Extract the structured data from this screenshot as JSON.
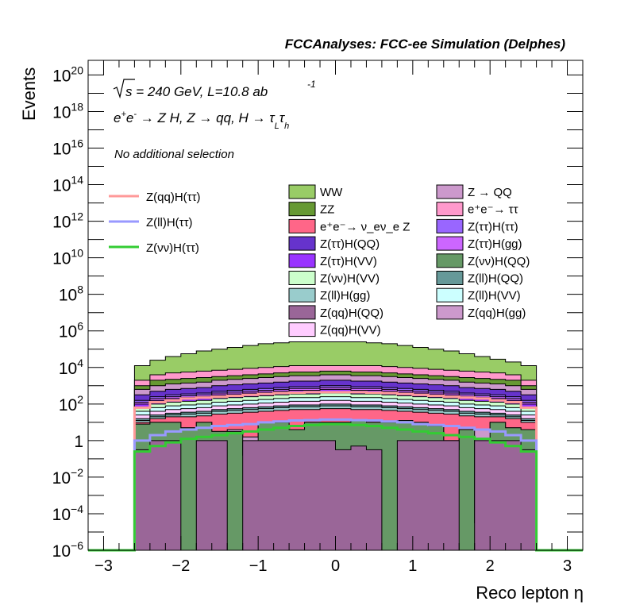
{
  "chart_data": {
    "type": "area",
    "header": "FCCAnalyses: FCC-ee Simulation (Delphes)",
    "xlabel": "Reco lepton η",
    "ylabel": "Events",
    "xlim": [
      -3.2,
      3.2
    ],
    "ylim_log10": [
      -6,
      20.8
    ],
    "yscale": "log",
    "x_ticks": [
      "−3",
      "−2",
      "−1",
      "0",
      "1",
      "2",
      "3"
    ],
    "x_tick_values": [
      -3,
      -2,
      -1,
      0,
      1,
      2,
      3
    ],
    "y_ticks": [
      {
        "exp": -6,
        "base": "10",
        "sup": "−6"
      },
      {
        "exp": -4,
        "base": "10",
        "sup": "−4"
      },
      {
        "exp": -2,
        "base": "10",
        "sup": "−2"
      },
      {
        "exp": 0,
        "base": "1",
        "sup": ""
      },
      {
        "exp": 2,
        "base": "10",
        "sup": "2"
      },
      {
        "exp": 4,
        "base": "10",
        "sup": "4"
      },
      {
        "exp": 6,
        "base": "10",
        "sup": "6"
      },
      {
        "exp": 8,
        "base": "10",
        "sup": "8"
      },
      {
        "exp": 10,
        "base": "10",
        "sup": "10"
      },
      {
        "exp": 12,
        "base": "10",
        "sup": "12"
      },
      {
        "exp": 14,
        "base": "10",
        "sup": "14"
      },
      {
        "exp": 16,
        "base": "10",
        "sup": "16"
      },
      {
        "exp": 18,
        "base": "10",
        "sup": "18"
      },
      {
        "exp": 20,
        "base": "10",
        "sup": "20"
      }
    ],
    "annotations": {
      "energy": "√s = 240 GeV, L=10.8 ab",
      "energy_sup": "-1",
      "process": "e⁺e⁻ → Z H, Z → qq, H → τLτh",
      "selection": "No additional selection"
    },
    "bin_edges": [
      -2.6,
      -2.4,
      -2.2,
      -2.0,
      -1.8,
      -1.6,
      -1.4,
      -1.2,
      -1.0,
      -0.8,
      -0.6,
      -0.4,
      -0.2,
      0.0,
      0.2,
      0.4,
      0.6,
      0.8,
      1.0,
      1.2,
      1.4,
      1.6,
      1.8,
      2.0,
      2.2,
      2.4,
      2.6
    ],
    "stack_order_bottom_to_top": [
      "Z(qq)H(QQ)",
      "Z(νν)H(QQ)",
      "Z(qq)H(gg)",
      "e⁺e⁻→ ν_eν_e Z",
      "Z(ll)H(gg)",
      "Z(ll)H(QQ)",
      "Z(qq)H(VV)",
      "Z(ll)H(VV)",
      "Z(νν)H(VV)",
      "Z(ττ)H(VV)",
      "Z(ττ)H(gg)",
      "Z(ττ)H(ττ)",
      "Z(ττ)H(QQ)",
      "Z → QQ",
      "ZZ",
      "e⁺e⁻→ ττ",
      "WW"
    ],
    "stack_series": [
      {
        "name": "Z(qq)H(QQ)",
        "color": "#9a6698",
        "log10_values": [
          -0.5,
          0.0,
          0.0,
          -6.0,
          0.0,
          0.0,
          -6.0,
          0.0,
          0.0,
          0.0,
          0.0,
          0.0,
          0.0,
          -0.5,
          -0.3,
          -0.5,
          -6.0,
          0.0,
          0.0,
          0.0,
          0.0,
          -6.0,
          0.0,
          0.0,
          0.0,
          -0.5
        ]
      },
      {
        "name": "Z(νν)H(QQ)",
        "color": "#669966",
        "log10_values": [
          0.9,
          1.0,
          1.0,
          0.7,
          1.0,
          0.5,
          0.5,
          -0.8,
          1.0,
          1.0,
          0.6,
          1.0,
          1.0,
          1.0,
          1.1,
          1.0,
          1.0,
          1.1,
          1.0,
          0.8,
          -0.5,
          0.6,
          -4.5,
          1.0,
          0.7,
          0.6
        ]
      },
      {
        "name": "Z(qq)H(gg)",
        "color": "#cc99cc",
        "log10_values": [
          0.9,
          1.0,
          1.0,
          0.7,
          1.0,
          0.5,
          0.6,
          0.2,
          1.0,
          1.0,
          0.6,
          1.0,
          1.0,
          1.0,
          1.1,
          1.0,
          1.0,
          1.1,
          1.0,
          0.8,
          0.0,
          0.6,
          0.6,
          1.0,
          0.7,
          0.6
        ]
      },
      {
        "name": "e⁺e⁻→ ν_eν_e Z",
        "color": "#ff6688",
        "log10_values": [
          1.0,
          1.2,
          1.3,
          1.3,
          1.35,
          1.45,
          1.5,
          1.55,
          1.6,
          1.65,
          1.7,
          1.7,
          1.75,
          1.75,
          1.7,
          1.7,
          1.65,
          1.6,
          1.55,
          1.5,
          1.45,
          1.35,
          1.3,
          1.3,
          1.2,
          1.0
        ]
      },
      {
        "name": "Z(ll)H(gg)",
        "color": "#99cccc",
        "log10_values": [
          1.1,
          1.3,
          1.4,
          1.45,
          1.5,
          1.6,
          1.65,
          1.7,
          1.75,
          1.8,
          1.85,
          1.85,
          1.9,
          1.9,
          1.85,
          1.85,
          1.8,
          1.75,
          1.7,
          1.65,
          1.6,
          1.5,
          1.45,
          1.4,
          1.3,
          1.1
        ]
      },
      {
        "name": "Z(ll)H(QQ)",
        "color": "#669999",
        "log10_values": [
          1.2,
          1.4,
          1.5,
          1.55,
          1.6,
          1.7,
          1.75,
          1.8,
          1.85,
          1.9,
          1.95,
          1.95,
          2.0,
          2.0,
          1.95,
          1.95,
          1.9,
          1.85,
          1.8,
          1.75,
          1.7,
          1.6,
          1.55,
          1.5,
          1.4,
          1.2
        ]
      },
      {
        "name": "Z(qq)H(VV)",
        "color": "#ffccff",
        "log10_values": [
          1.4,
          1.6,
          1.7,
          1.75,
          1.8,
          1.9,
          1.95,
          2.0,
          2.05,
          2.1,
          2.15,
          2.15,
          2.2,
          2.2,
          2.15,
          2.15,
          2.1,
          2.05,
          2.0,
          1.95,
          1.9,
          1.8,
          1.75,
          1.7,
          1.6,
          1.4
        ]
      },
      {
        "name": "Z(ll)H(VV)",
        "color": "#ccffff",
        "log10_values": [
          1.6,
          1.8,
          1.9,
          1.95,
          2.0,
          2.1,
          2.15,
          2.2,
          2.25,
          2.3,
          2.35,
          2.35,
          2.4,
          2.4,
          2.35,
          2.35,
          2.3,
          2.25,
          2.2,
          2.15,
          2.1,
          2.0,
          1.95,
          1.9,
          1.8,
          1.6
        ]
      },
      {
        "name": "Z(νν)H(VV)",
        "color": "#ccffcc",
        "log10_values": [
          1.8,
          2.0,
          2.1,
          2.15,
          2.2,
          2.3,
          2.35,
          2.4,
          2.45,
          2.5,
          2.55,
          2.55,
          2.6,
          2.6,
          2.55,
          2.55,
          2.5,
          2.45,
          2.4,
          2.35,
          2.3,
          2.2,
          2.15,
          2.1,
          2.0,
          1.8
        ]
      },
      {
        "name": "Z(ττ)H(VV)",
        "color": "#9933ff",
        "log10_values": [
          2.0,
          2.2,
          2.3,
          2.35,
          2.4,
          2.5,
          2.55,
          2.6,
          2.65,
          2.7,
          2.75,
          2.75,
          2.8,
          2.8,
          2.75,
          2.75,
          2.7,
          2.65,
          2.6,
          2.55,
          2.5,
          2.4,
          2.35,
          2.3,
          2.2,
          2.0
        ]
      },
      {
        "name": "Z(ττ)H(gg)",
        "color": "#cc66ff",
        "log10_values": [
          2.1,
          2.3,
          2.4,
          2.45,
          2.5,
          2.6,
          2.65,
          2.7,
          2.75,
          2.8,
          2.85,
          2.85,
          2.9,
          2.9,
          2.85,
          2.85,
          2.8,
          2.75,
          2.7,
          2.65,
          2.6,
          2.5,
          2.45,
          2.4,
          2.3,
          2.1
        ]
      },
      {
        "name": "Z(ττ)H(ττ)",
        "color": "#9966ff",
        "log10_values": [
          2.2,
          2.4,
          2.5,
          2.55,
          2.6,
          2.7,
          2.75,
          2.8,
          2.85,
          2.9,
          2.95,
          2.95,
          3.0,
          3.0,
          2.95,
          2.95,
          2.9,
          2.85,
          2.8,
          2.75,
          2.7,
          2.6,
          2.55,
          2.5,
          2.4,
          2.2
        ]
      },
      {
        "name": "Z(ττ)H(QQ)",
        "color": "#6633cc",
        "log10_values": [
          2.5,
          2.7,
          2.8,
          2.85,
          2.9,
          3.0,
          3.05,
          3.1,
          3.15,
          3.2,
          3.25,
          3.25,
          3.3,
          3.3,
          3.25,
          3.25,
          3.2,
          3.15,
          3.1,
          3.05,
          3.0,
          2.9,
          2.85,
          2.8,
          2.7,
          2.5
        ]
      },
      {
        "name": "Z → QQ",
        "color": "#cc99cc",
        "log10_values": [
          2.8,
          3.0,
          3.1,
          3.15,
          3.2,
          3.3,
          3.35,
          3.4,
          3.45,
          3.5,
          3.55,
          3.55,
          3.6,
          3.6,
          3.55,
          3.55,
          3.5,
          3.45,
          3.4,
          3.35,
          3.3,
          3.2,
          3.15,
          3.1,
          3.0,
          2.8
        ]
      },
      {
        "name": "ZZ",
        "color": "#669933",
        "log10_values": [
          3.0,
          3.3,
          3.35,
          3.4,
          3.45,
          3.5,
          3.55,
          3.6,
          3.65,
          3.7,
          3.75,
          3.75,
          3.8,
          3.8,
          3.75,
          3.75,
          3.7,
          3.65,
          3.6,
          3.55,
          3.5,
          3.45,
          3.4,
          3.35,
          3.3,
          3.0
        ]
      },
      {
        "name": "e⁺e⁻→ ττ",
        "color": "#ff99cc",
        "log10_values": [
          3.3,
          3.6,
          3.7,
          3.75,
          3.8,
          3.85,
          3.9,
          3.95,
          4.0,
          4.05,
          4.1,
          4.1,
          4.1,
          4.1,
          4.1,
          4.1,
          4.05,
          4.0,
          3.95,
          3.9,
          3.85,
          3.8,
          3.75,
          3.7,
          3.6,
          3.3
        ]
      },
      {
        "name": "WW",
        "color": "#99cc66",
        "log10_values": [
          4.1,
          4.4,
          4.6,
          4.75,
          4.9,
          5.0,
          5.1,
          5.2,
          5.3,
          5.35,
          5.4,
          5.4,
          5.4,
          5.4,
          5.4,
          5.35,
          5.3,
          5.2,
          5.1,
          5.0,
          4.9,
          4.75,
          4.6,
          4.45,
          4.3,
          4.1
        ]
      }
    ],
    "signal_series": [
      {
        "name": "Z(qq)H(ττ)",
        "color": "#ff9999",
        "log10_values": [
          1.8,
          2.1,
          2.2,
          2.3,
          2.35,
          2.4,
          2.45,
          2.5,
          2.55,
          2.6,
          2.62,
          2.65,
          2.65,
          2.65,
          2.65,
          2.62,
          2.6,
          2.55,
          2.5,
          2.45,
          2.4,
          2.35,
          2.3,
          2.2,
          2.1,
          1.8
        ]
      },
      {
        "name": "Z(ll)H(ττ)",
        "color": "#9999ff",
        "log10_values": [
          0.0,
          0.3,
          0.5,
          0.6,
          0.7,
          0.8,
          0.85,
          0.9,
          1.0,
          1.05,
          1.1,
          1.12,
          1.15,
          1.15,
          1.12,
          1.1,
          1.05,
          1.0,
          0.9,
          0.85,
          0.8,
          0.7,
          0.6,
          0.5,
          0.3,
          0.0
        ]
      },
      {
        "name": "Z(νν)H(ττ)",
        "color": "#33cc33",
        "log10_values": [
          -0.6,
          -0.3,
          -0.1,
          0.1,
          0.2,
          0.3,
          0.4,
          0.5,
          0.6,
          0.7,
          0.8,
          0.85,
          0.9,
          0.9,
          0.85,
          0.8,
          0.7,
          0.6,
          0.5,
          0.4,
          0.3,
          0.2,
          0.1,
          -0.1,
          -0.3,
          -0.6
        ]
      }
    ],
    "legend_lines": [
      {
        "name": "Z(qq)H(ττ)",
        "color": "#ff9999"
      },
      {
        "name": "Z(ll)H(ττ)",
        "color": "#9999ff"
      },
      {
        "name": "Z(νν)H(ττ)",
        "color": "#33cc33"
      }
    ],
    "legend_col1": [
      {
        "name": "WW",
        "color": "#99cc66"
      },
      {
        "name": "ZZ",
        "color": "#669933"
      },
      {
        "name": "e⁺e⁻→ ν_eν_e Z",
        "color": "#ff6688"
      },
      {
        "name": "Z(ττ)H(QQ)",
        "color": "#6633cc"
      },
      {
        "name": "Z(ττ)H(VV)",
        "color": "#9933ff"
      },
      {
        "name": "Z(νν)H(VV)",
        "color": "#ccffcc"
      },
      {
        "name": "Z(ll)H(gg)",
        "color": "#99cccc"
      },
      {
        "name": "Z(qq)H(QQ)",
        "color": "#9a6698"
      },
      {
        "name": "Z(qq)H(VV)",
        "color": "#ffccff"
      }
    ],
    "legend_col2": [
      {
        "name": "Z → QQ",
        "color": "#cc99cc"
      },
      {
        "name": "e⁺e⁻→ ττ",
        "color": "#ff99cc"
      },
      {
        "name": "Z(ττ)H(ττ)",
        "color": "#9966ff"
      },
      {
        "name": "Z(ττ)H(gg)",
        "color": "#cc66ff"
      },
      {
        "name": "Z(νν)H(QQ)",
        "color": "#669966"
      },
      {
        "name": "Z(ll)H(QQ)",
        "color": "#669999"
      },
      {
        "name": "Z(ll)H(VV)",
        "color": "#ccffff"
      },
      {
        "name": "Z(qq)H(gg)",
        "color": "#cc99cc"
      }
    ],
    "grid": false
  }
}
